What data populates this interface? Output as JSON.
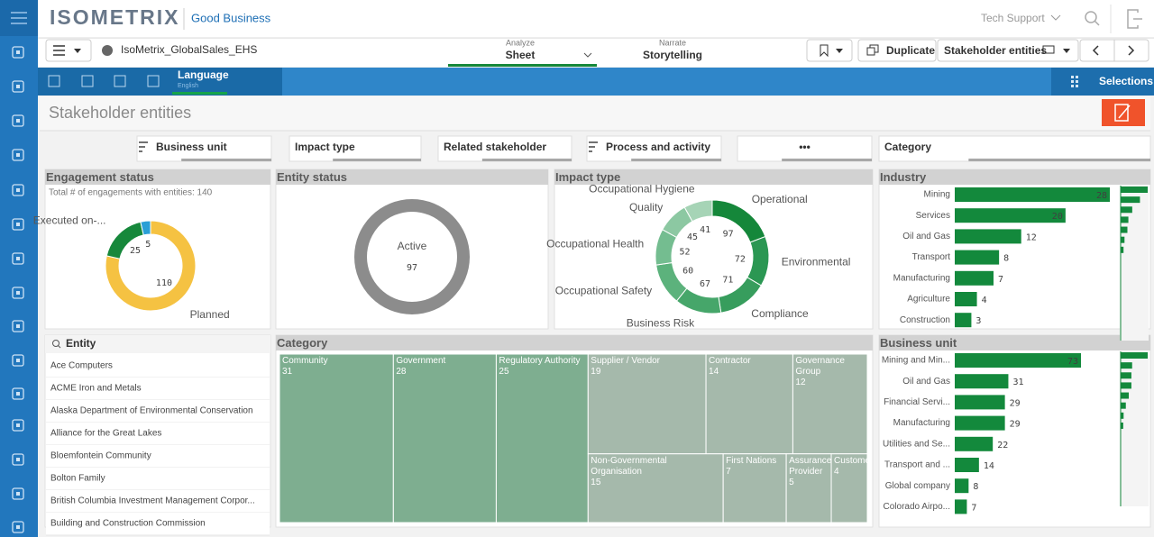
{
  "header": {
    "logo": "ISOMETRIX",
    "tagline": "Good Business",
    "support": "Tech Support"
  },
  "toolbar": {
    "app": "IsoMetrix_GlobalSales_EHS",
    "analyze": {
      "label": "Analyze",
      "value": "Sheet"
    },
    "narrate": {
      "label": "Narrate",
      "value": "Storytelling"
    },
    "duplicate": "Duplicate",
    "sheet": "Stakeholder entities"
  },
  "tabs": {
    "language": "Language",
    "language_value": "English",
    "selections": "Selections"
  },
  "sheet_title": "Stakeholder entities",
  "filters": [
    "Business unit",
    "Impact type",
    "Related stakeholder",
    "Process and activity",
    "•••",
    "Category"
  ],
  "engagement_status": {
    "type": "pie",
    "title": "Engagement status",
    "subtitle": "Total # of engagements with entities: 140",
    "categories": [
      "Planned",
      "Executed on-...",
      null
    ],
    "values": [
      110,
      25,
      5
    ],
    "colors": [
      "#f5c242",
      "#16883b",
      "#2a9fd6"
    ]
  },
  "entity_status": {
    "type": "pie",
    "title": "Entity status",
    "categories": [
      "Active"
    ],
    "values": [
      97
    ],
    "colors": [
      "#8c8c8c"
    ]
  },
  "impact_type": {
    "type": "pie",
    "title": "Impact type",
    "categories": [
      "Operational",
      "Environmental",
      "Compliance",
      "Business Risk",
      "Occupational Safety",
      "Occupational Health",
      "Quality",
      "Occupational Hygiene"
    ],
    "values": [
      97,
      72,
      71,
      67,
      60,
      52,
      45,
      41
    ],
    "colors": [
      "#15873a",
      "#2b9753",
      "#379d5d",
      "#46a66a",
      "#5cb27c",
      "#74bd90",
      "#8cc8a2",
      "#a6d4b6"
    ]
  },
  "industry": {
    "type": "bar",
    "title": "Industry",
    "categories": [
      "Mining",
      "Services",
      "Oil and Gas",
      "Transport",
      "Manufacturing",
      "Agriculture",
      "Construction"
    ],
    "values": [
      28,
      20,
      12,
      8,
      7,
      4,
      3
    ],
    "color": "#13893c"
  },
  "entity_list": {
    "header": "Entity",
    "rows": [
      "Ace Computers",
      "ACME Iron and Metals",
      "Alaska Department of Environmental Conservation",
      "Alliance for the Great Lakes",
      "Bloemfontein Community",
      "Bolton Family",
      "British Columbia Investment Management Corpor...",
      "Building and Construction Commission"
    ]
  },
  "category": {
    "type": "treemap",
    "title": "Category",
    "categories": [
      "Community",
      "Government",
      "Regulatory Authority",
      "Supplier / Vendor",
      "Contractor",
      "Governance Group",
      "Non-Governmental Organisation",
      "First Nations",
      "Assurance Provider",
      "Customer"
    ],
    "values": [
      31,
      28,
      25,
      19,
      14,
      12,
      15,
      7,
      5,
      4
    ],
    "colors": [
      "#7eae90",
      "#7eae90",
      "#7eae90",
      "#a5b9ab",
      "#a5b9ab",
      "#a5b9ab",
      "#a5b9ab",
      "#a5b9ab",
      "#a5b9ab",
      "#a5b9ab"
    ]
  },
  "business_unit": {
    "type": "bar",
    "title": "Business unit",
    "categories": [
      "Mining and Min...",
      "Oil and Gas",
      "Financial Servi...",
      "Manufacturing",
      "Utilities and Se...",
      "Transport and ...",
      "Global company",
      "Colorado Airpo..."
    ],
    "values": [
      73,
      31,
      29,
      29,
      22,
      14,
      8,
      7
    ],
    "color": "#13893c"
  }
}
